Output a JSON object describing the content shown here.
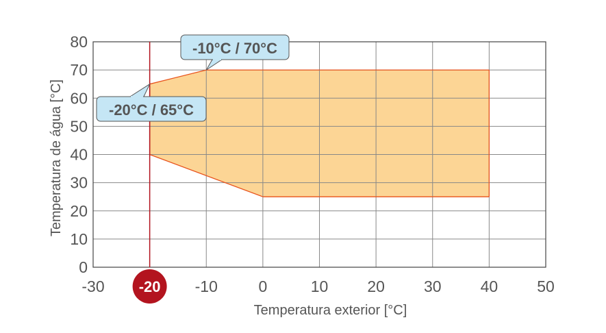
{
  "chart_data": {
    "type": "area",
    "xlabel": "Temperatura exterior [°C]",
    "ylabel": "Temperatura de água [°C]",
    "xlim": [
      -30,
      50
    ],
    "ylim": [
      0,
      80
    ],
    "xticks": [
      -30,
      -20,
      -10,
      0,
      10,
      20,
      30,
      40,
      50
    ],
    "yticks": [
      0,
      10,
      20,
      30,
      40,
      50,
      60,
      70,
      80
    ],
    "grid": true,
    "region": {
      "x": [
        -20,
        -20,
        -10,
        40,
        40,
        0
      ],
      "y": [
        40,
        65,
        70,
        70,
        25,
        25
      ]
    },
    "highlight_x": -20,
    "highlight_label": "-20",
    "annotations": [
      {
        "label": "-20°C / 65°C",
        "x": -20,
        "y": 65
      },
      {
        "label": "-10°C / 70°C",
        "x": -10,
        "y": 70
      }
    ],
    "colors": {
      "fill": "#fcd595",
      "edge": "#e8531c",
      "highlight": "#b3141f",
      "callout": "#c5e6f5"
    }
  }
}
